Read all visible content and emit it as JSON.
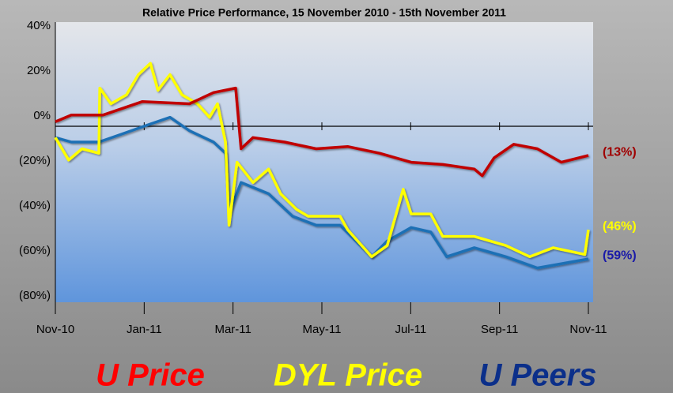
{
  "chart_data": {
    "type": "line",
    "title": "Relative Price Performance, 15 November 2010 - 15th November 2011",
    "xlim": [
      0,
      12
    ],
    "xticks": [
      {
        "value": 0,
        "label": "Nov-10"
      },
      {
        "value": 2,
        "label": "Jan-11"
      },
      {
        "value": 4,
        "label": "Mar-11"
      },
      {
        "value": 6,
        "label": "May-11"
      },
      {
        "value": 8,
        "label": "Jul-11"
      },
      {
        "value": 10,
        "label": "Sep-11"
      },
      {
        "value": 12,
        "label": "Nov-11"
      }
    ],
    "ylim": [
      -80,
      40
    ],
    "yticks": [
      {
        "value": 40,
        "label": "40%"
      },
      {
        "value": 20,
        "label": "20%"
      },
      {
        "value": 0,
        "label": "0%"
      },
      {
        "value": -20,
        "label": "(20%)"
      },
      {
        "value": -40,
        "label": "(40%)"
      },
      {
        "value": -60,
        "label": "(60%)"
      },
      {
        "value": -80,
        "label": "(80%)"
      }
    ],
    "series": [
      {
        "name": "U Price",
        "color": "#c00000",
        "label_color": "#ff0000",
        "end_label": "(13%)",
        "end_label_color": "#a00000",
        "x": [
          0,
          0.36,
          1.07,
          1.96,
          3.02,
          3.56,
          4.06,
          4.18,
          4.45,
          5.16,
          5.87,
          6.58,
          7.3,
          8.01,
          8.72,
          9.43,
          9.61,
          9.88,
          10.32,
          10.85,
          11.39,
          12.0
        ],
        "values": [
          2,
          5,
          5,
          11,
          10,
          15,
          17,
          -10,
          -5,
          -7,
          -10,
          -9,
          -12,
          -16,
          -17,
          -19,
          -22,
          -14,
          -8,
          -10,
          -16,
          -13
        ]
      },
      {
        "name": "DYL Price",
        "color": "#ffff00",
        "label_color": "#ffff00",
        "end_label": "(46%)",
        "end_label_color": "#ffff00",
        "x": [
          0,
          0.3,
          0.6,
          0.98,
          1.0,
          1.25,
          1.6,
          1.87,
          2.14,
          2.31,
          2.58,
          2.85,
          3.2,
          3.47,
          3.65,
          3.83,
          3.91,
          4.09,
          4.45,
          4.8,
          5.07,
          5.43,
          5.69,
          6.41,
          6.58,
          7.12,
          7.47,
          7.83,
          8.01,
          8.45,
          8.72,
          9.43,
          10.14,
          10.68,
          11.21,
          11.92,
          12.0
        ],
        "values": [
          -5,
          -15,
          -10,
          -12,
          17,
          10,
          14,
          23,
          28,
          16,
          23,
          14,
          10,
          4,
          10,
          -7,
          -44,
          -16,
          -25,
          -19,
          -30,
          -37,
          -40,
          -40,
          -46,
          -58,
          -53,
          -28,
          -39,
          -39,
          -49,
          -49,
          -53,
          -58,
          -54,
          -57,
          -46
        ]
      },
      {
        "name": "U Peers",
        "color": "#1f6fb5",
        "label_color": "#0b2f8a",
        "end_label": "(59%)",
        "end_label_color": "#1a1aa8",
        "x": [
          0,
          0.36,
          0.98,
          1.42,
          2.14,
          2.58,
          3.02,
          3.56,
          3.83,
          3.91,
          4.18,
          4.8,
          5.34,
          5.87,
          6.41,
          7.12,
          7.47,
          8.01,
          8.45,
          8.81,
          9.43,
          10.14,
          10.85,
          12.0
        ],
        "values": [
          -5,
          -7,
          -7,
          -4,
          1,
          4,
          -2,
          -7,
          -12,
          -39,
          -25,
          -30,
          -40,
          -44,
          -44,
          -58,
          -51,
          -45,
          -47,
          -58,
          -54,
          -58,
          -63,
          -59
        ]
      }
    ]
  }
}
